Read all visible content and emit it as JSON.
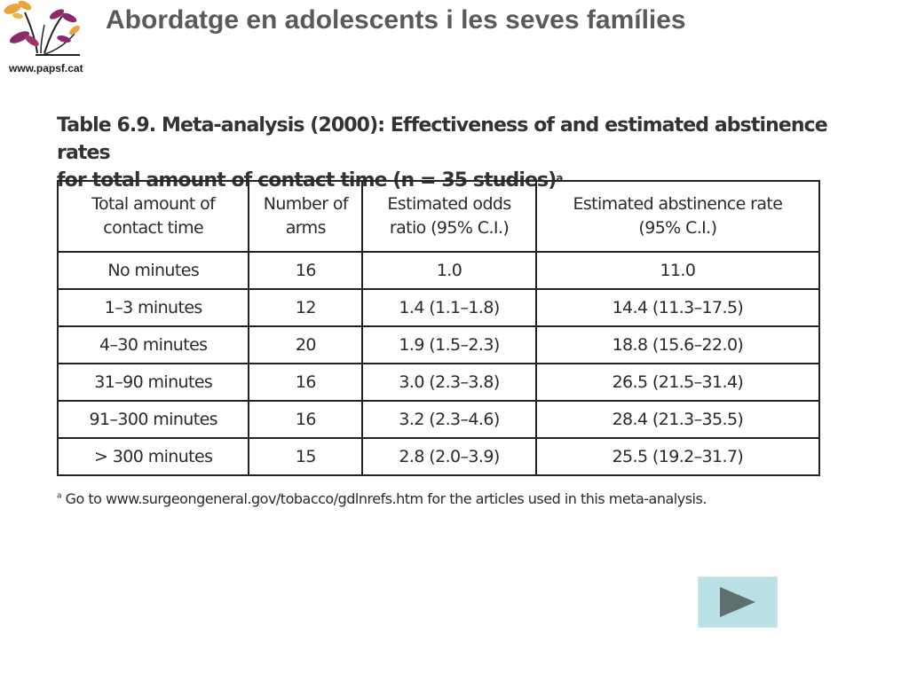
{
  "header": {
    "logo_url": "www.papsf.cat",
    "title": "Abordatge en adolescents i les seves famílies"
  },
  "table": {
    "caption_line1": "Table 6.9. Meta-analysis (2000): Effectiveness of and estimated abstinence rates",
    "caption_line2": "for total amount of contact time (n = 35 studies)",
    "caption_sup": "a",
    "headers": [
      {
        "line1": "Total amount of",
        "line2": "contact time"
      },
      {
        "line1": "Number of",
        "line2": "arms"
      },
      {
        "line1": "Estimated odds",
        "line2": "ratio (95% C.I.)"
      },
      {
        "line1": "Estimated abstinence rate",
        "line2": "(95% C.I.)"
      }
    ],
    "rows": [
      [
        "No minutes",
        "16",
        "1.0",
        "11.0"
      ],
      [
        "1–3 minutes",
        "12",
        "1.4 (1.1–1.8)",
        "14.4 (11.3–17.5)"
      ],
      [
        "4–30 minutes",
        "20",
        "1.9 (1.5–2.3)",
        "18.8 (15.6–22.0)"
      ],
      [
        "31–90 minutes",
        "16",
        "3.0 (2.3–3.8)",
        "26.5 (21.5–31.4)"
      ],
      [
        "91–300 minutes",
        "16",
        "3.2 (2.3–4.6)",
        "28.4 (21.3–35.5)"
      ],
      [
        "> 300 minutes",
        "15",
        "2.8 (2.0–3.9)",
        "25.5 (19.2–31.7)"
      ]
    ],
    "footnote_sup": "a",
    "footnote": " Go to www.surgeongeneral.gov/tobacco/gdlnrefs.htm for the articles used in this meta-analysis."
  },
  "navigation": {
    "next_icon": "play-triangle-icon",
    "button_color": "#b9e0e4",
    "icon_color": "#5f6f6f"
  },
  "colors": {
    "title": "#5a5a5a",
    "logo_orange": "#e9a43a",
    "logo_purple": "#8a2a6a"
  }
}
